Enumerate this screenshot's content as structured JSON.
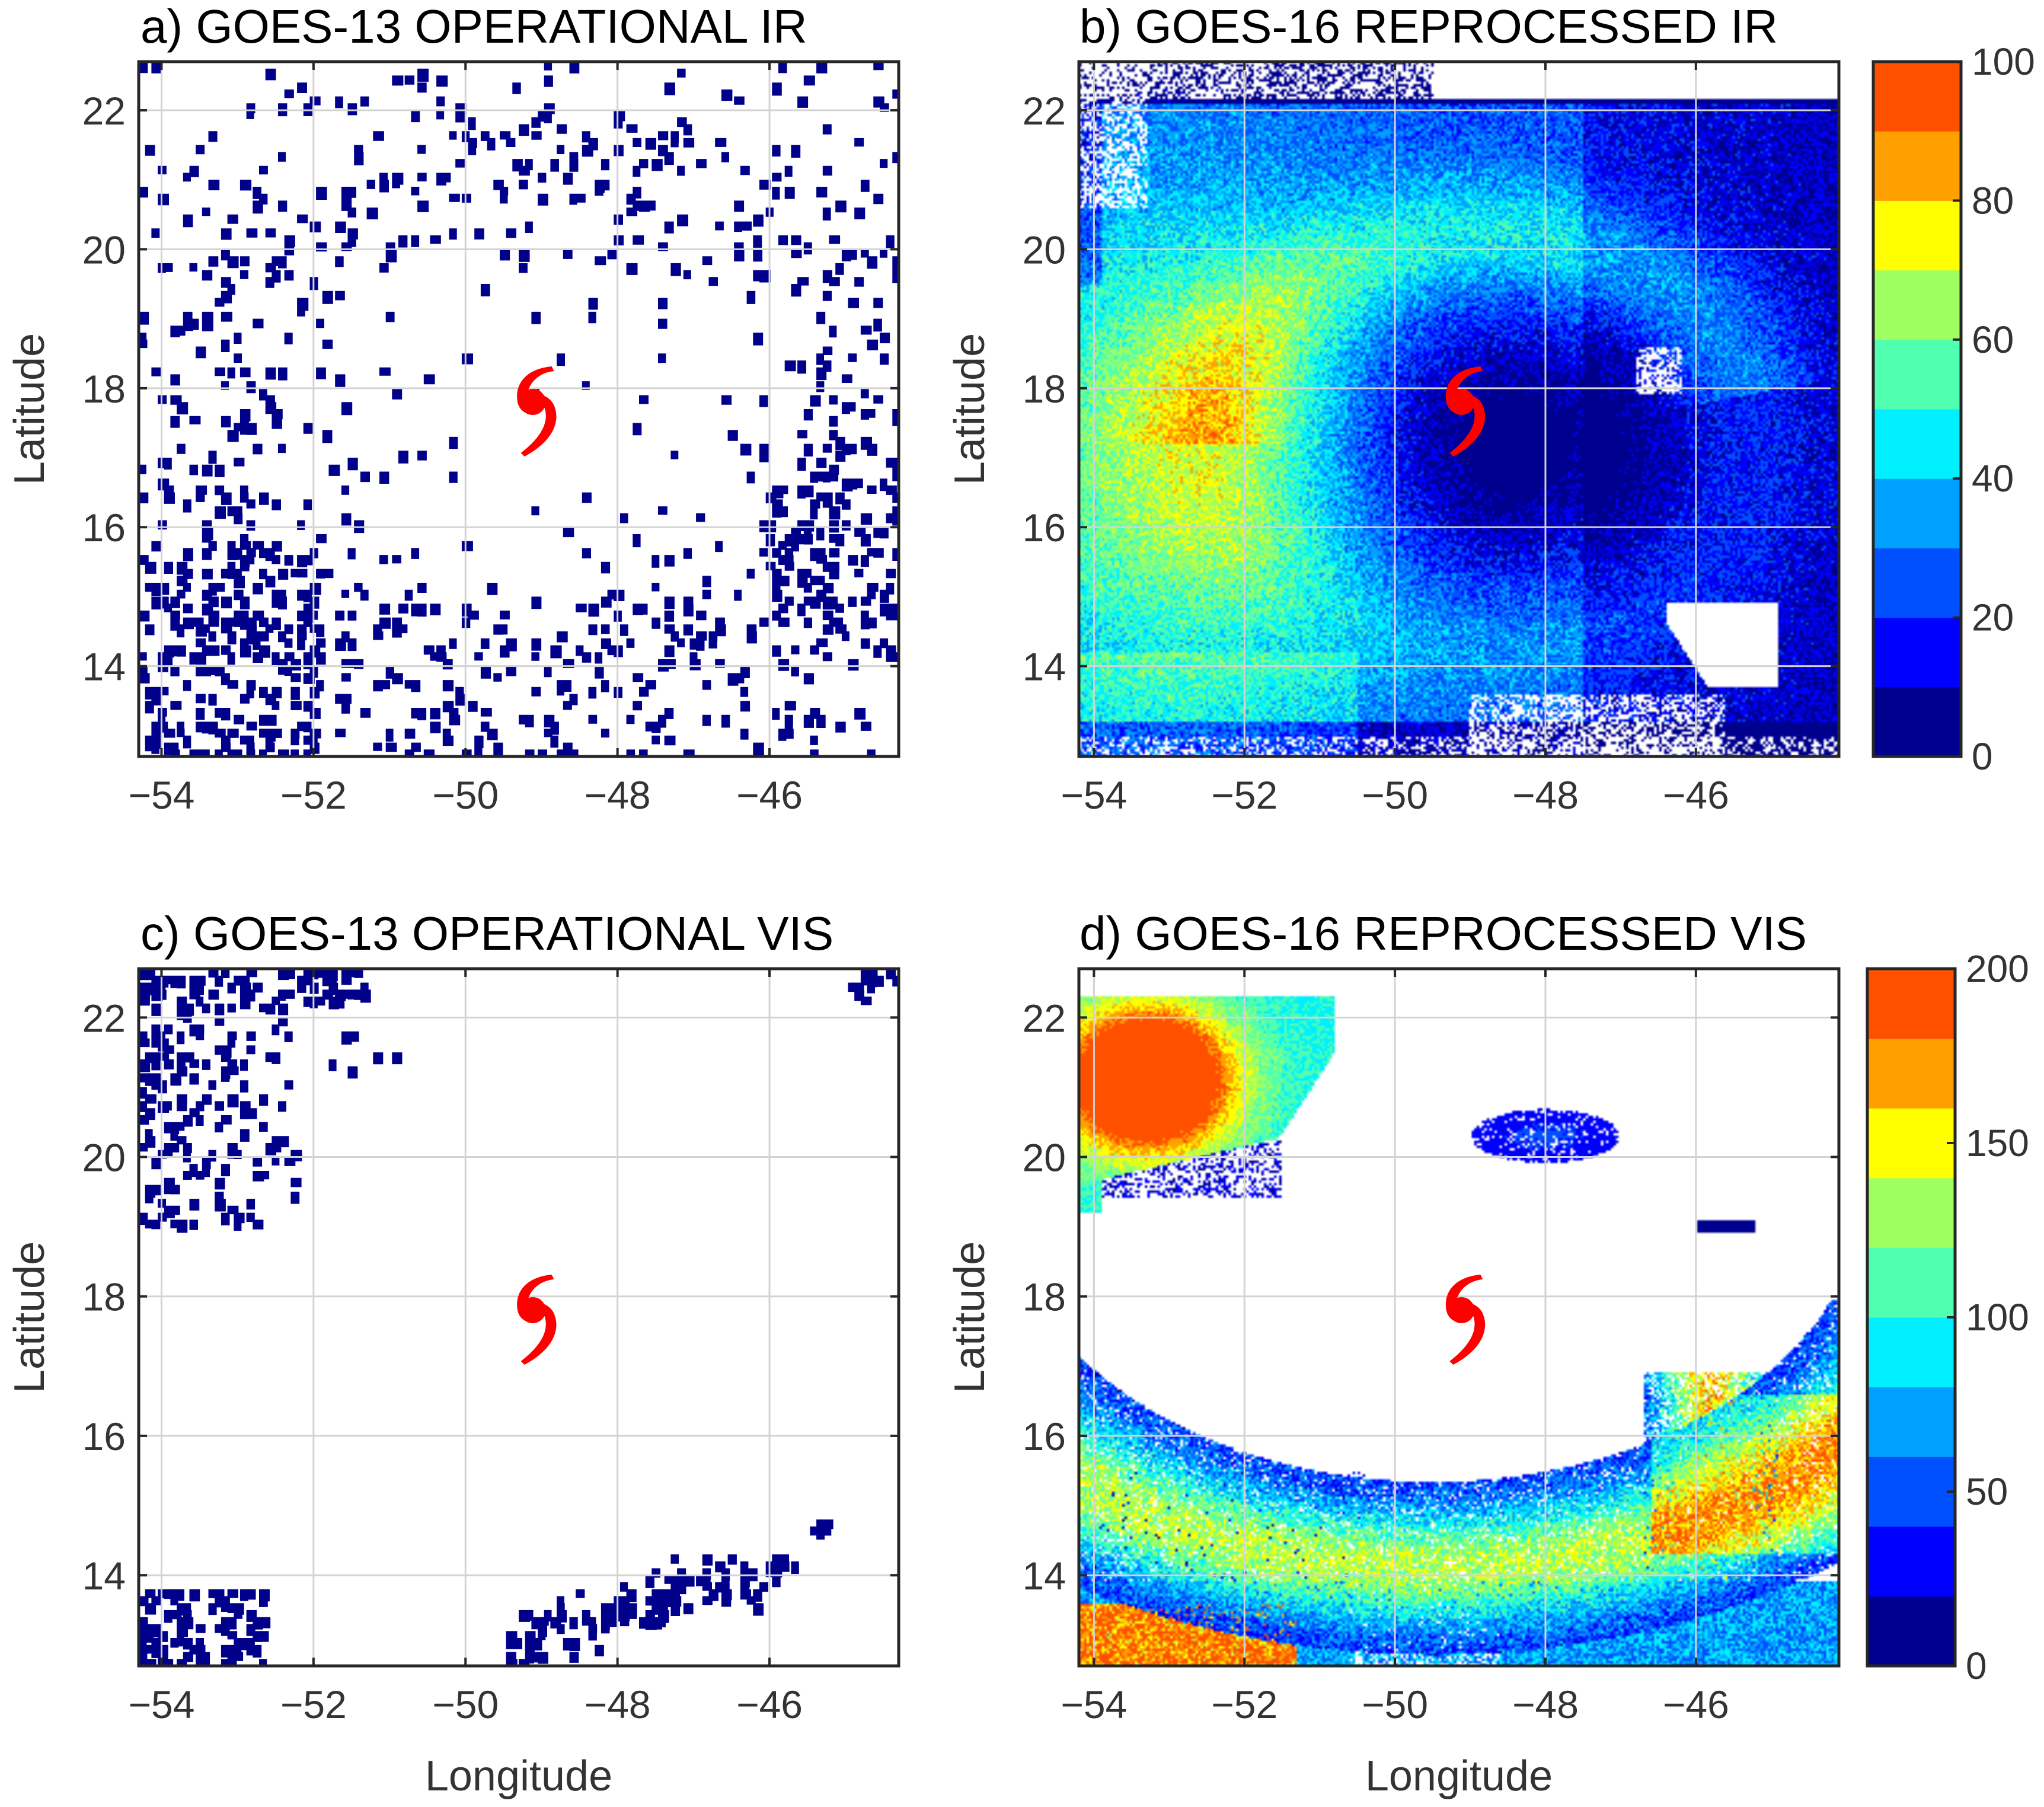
{
  "chart_data": [
    {
      "id": "a",
      "type": "heatmap",
      "title": "a) GOES-13 OPERATIONAL IR",
      "xlabel": "",
      "ylabel": "Latitude",
      "xlim": [
        -54.3,
        -44.3
      ],
      "ylim": [
        12.7,
        22.7
      ],
      "xticks": [
        "−54",
        "−52",
        "−50",
        "−48",
        "−46"
      ],
      "xtick_values": [
        -54,
        -52,
        -50,
        -48,
        -46
      ],
      "yticks": [
        "22",
        "20",
        "18",
        "16",
        "14"
      ],
      "ytick_values": [
        22,
        20,
        18,
        16,
        14
      ],
      "grid": true,
      "storm_center": {
        "lon": -49.1,
        "lat": 17.7,
        "symbol": "௵"
      },
      "field": "sparse",
      "density": 0.07,
      "colorbar": null
    },
    {
      "id": "b",
      "type": "heatmap",
      "title": "b) GOES-16 REPROCESSED IR",
      "xlabel": "",
      "ylabel": "Latitude",
      "xlim": [
        -54.2,
        -44.1
      ],
      "ylim": [
        12.7,
        22.7
      ],
      "xticks": [
        "−54",
        "−52",
        "−50",
        "−48",
        "−46"
      ],
      "xtick_values": [
        -54,
        -52,
        -50,
        -48,
        -46
      ],
      "yticks": [
        "22",
        "20",
        "18",
        "16",
        "14"
      ],
      "ytick_values": [
        22,
        20,
        18,
        16,
        14
      ],
      "grid": true,
      "storm_center": {
        "lon": -49.1,
        "lat": 17.7,
        "symbol": "௵"
      },
      "field": "ir_dense",
      "colorbar": {
        "min": 0,
        "max": 100,
        "ticks": [
          "100",
          "80",
          "60",
          "40",
          "20",
          "0"
        ],
        "tick_values": [
          100,
          80,
          60,
          40,
          20,
          0
        ],
        "levels": 10
      }
    },
    {
      "id": "c",
      "type": "heatmap",
      "title": "c) GOES-13 OPERATIONAL VIS",
      "xlabel": "Longitude",
      "ylabel": "Latitude",
      "xlim": [
        -54.3,
        -44.3
      ],
      "ylim": [
        12.7,
        22.7
      ],
      "xticks": [
        "−54",
        "−52",
        "−50",
        "−48",
        "−46"
      ],
      "xtick_values": [
        -54,
        -52,
        -50,
        -48,
        -46
      ],
      "yticks": [
        "22",
        "20",
        "18",
        "16",
        "14"
      ],
      "ytick_values": [
        22,
        20,
        18,
        16,
        14
      ],
      "grid": true,
      "storm_center": {
        "lon": -49.1,
        "lat": 17.7,
        "symbol": "௵"
      },
      "field": "vis_sparse",
      "colorbar": null
    },
    {
      "id": "d",
      "type": "heatmap",
      "title": "d) GOES-16 REPROCESSED VIS",
      "xlabel": "Longitude",
      "ylabel": "Latitude",
      "xlim": [
        -54.2,
        -44.1
      ],
      "ylim": [
        12.7,
        22.7
      ],
      "xticks": [
        "−54",
        "−52",
        "−50",
        "−48",
        "−46"
      ],
      "xtick_values": [
        -54,
        -52,
        -50,
        -48,
        -46
      ],
      "yticks": [
        "22",
        "20",
        "18",
        "16",
        "14"
      ],
      "ytick_values": [
        22,
        20,
        18,
        16,
        14
      ],
      "grid": true,
      "storm_center": {
        "lon": -49.1,
        "lat": 17.7,
        "symbol": "௵"
      },
      "field": "vis_dense",
      "colorbar": {
        "min": 0,
        "max": 200,
        "ticks": [
          "200",
          "150",
          "100",
          "50",
          "0"
        ],
        "tick_values": [
          200,
          150,
          100,
          50,
          0
        ],
        "levels": 10
      }
    }
  ],
  "colormap": [
    "#00008f",
    "#0000ff",
    "#0050ff",
    "#00a0ff",
    "#00f0ff",
    "#50ffb0",
    "#a0ff60",
    "#ffff00",
    "#ffa000",
    "#ff5000"
  ],
  "point_color": "#00008b",
  "storm_color": "#ff0000",
  "grid_color": "#d3d3d3",
  "axis_color": "#262626"
}
